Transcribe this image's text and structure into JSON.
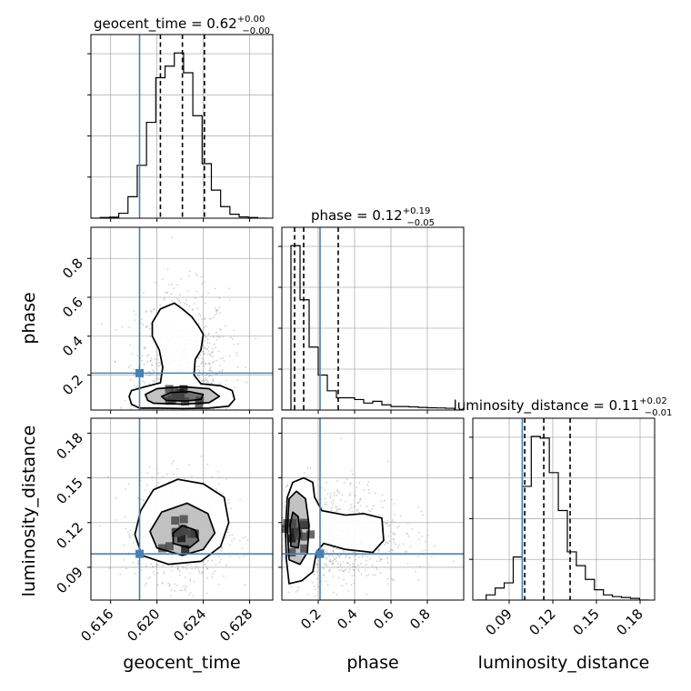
{
  "chart_data": {
    "type": "corner",
    "parameters": [
      "geocent_time",
      "phase",
      "luminosity_distance"
    ],
    "truth": {
      "geocent_time": 0.6185,
      "phase": 0.21,
      "luminosity_distance": 0.099
    },
    "colors": {
      "truth": "#4682b4",
      "hist": "#000000",
      "grid": "#b0b0b0",
      "points": "#9a9a9a"
    },
    "grid": true,
    "marginals": [
      {
        "param": "geocent_time",
        "title": {
          "main": "geocent_time = 0.62",
          "sup": "+0.00",
          "sub": "−0.00"
        },
        "range": [
          0.6143,
          0.63
        ],
        "ticks": [
          0.616,
          0.62,
          0.624,
          0.628
        ],
        "tick_labels": [
          "0.616",
          "0.620",
          "0.624",
          "0.628"
        ],
        "quantiles": [
          0.6203,
          0.6222,
          0.6241
        ],
        "bin_edges": [
          0.6143,
          0.6151,
          0.6159,
          0.6167,
          0.6175,
          0.6183,
          0.6191,
          0.6199,
          0.6207,
          0.6215,
          0.6223,
          0.6231,
          0.6239,
          0.6247,
          0.6255,
          0.6263,
          0.6271,
          0.6279,
          0.6287,
          0.6295
        ],
        "counts": [
          0.0,
          0.004,
          0.006,
          0.03,
          0.13,
          0.32,
          0.58,
          0.85,
          0.92,
          1.0,
          0.88,
          0.62,
          0.33,
          0.17,
          0.07,
          0.024,
          0.008,
          0.004,
          0.0
        ]
      },
      {
        "param": "phase",
        "title": {
          "main": "phase = 0.12",
          "sup": "+0.19",
          "sub": "−0.05"
        },
        "range": [
          0.0,
          1.0
        ],
        "ticks": [
          0.2,
          0.4,
          0.6,
          0.8
        ],
        "tick_labels": [
          "0.2",
          "0.4",
          "0.6",
          "0.8"
        ],
        "quantiles": [
          0.07,
          0.12,
          0.31
        ],
        "bin_edges": [
          0.0,
          0.05,
          0.1,
          0.15,
          0.2,
          0.25,
          0.3,
          0.35,
          0.4,
          0.45,
          0.5,
          0.55,
          0.6,
          0.65,
          0.7,
          0.75,
          0.8,
          0.85,
          0.9,
          0.95,
          1.0
        ],
        "counts": [
          0.0,
          0.94,
          0.63,
          0.36,
          0.2,
          0.11,
          0.07,
          0.07,
          0.06,
          0.04,
          0.05,
          0.03,
          0.02,
          0.02,
          0.018,
          0.015,
          0.013,
          0.012,
          0.01,
          0.0
        ]
      },
      {
        "param": "luminosity_distance",
        "title": {
          "main": "luminosity_distance = 0.11",
          "sup": "+0.02",
          "sub": "−0.01"
        },
        "range": [
          0.065,
          0.19
        ],
        "ticks": [
          0.09,
          0.12,
          0.15,
          0.18
        ],
        "tick_labels": [
          "0.09",
          "0.12",
          "0.15",
          "0.18"
        ],
        "quantiles": [
          0.1007,
          0.1138,
          0.1319
        ],
        "bin_edges": [
          0.068,
          0.0742,
          0.0804,
          0.0866,
          0.0928,
          0.099,
          0.1052,
          0.1114,
          0.1176,
          0.1238,
          0.13,
          0.1362,
          0.1424,
          0.1486,
          0.1548,
          0.161,
          0.1672,
          0.1734,
          0.1796,
          0.1858
        ],
        "counts": [
          0.0,
          0.03,
          0.07,
          0.1,
          0.25,
          0.66,
          0.95,
          0.94,
          0.74,
          0.52,
          0.28,
          0.2,
          0.12,
          0.06,
          0.03,
          0.02,
          0.015,
          0.01,
          0.0
        ]
      }
    ],
    "pairs": [
      {
        "x": "geocent_time",
        "y": "phase",
        "y_range": [
          0.02,
          0.96
        ],
        "y_ticks": [
          0.2,
          0.4,
          0.6,
          0.8
        ],
        "y_tick_labels": [
          "0.2",
          "0.4",
          "0.6",
          "0.8"
        ],
        "contours": [
          [
            [
              0.6185,
              0.03
            ],
            [
              0.62,
              0.03
            ],
            [
              0.6222,
              0.028
            ],
            [
              0.6245,
              0.03
            ],
            [
              0.6262,
              0.04
            ],
            [
              0.6267,
              0.075
            ],
            [
              0.6265,
              0.12
            ],
            [
              0.6255,
              0.145
            ],
            [
              0.6238,
              0.155
            ],
            [
              0.6232,
              0.2
            ],
            [
              0.6233,
              0.28
            ],
            [
              0.6238,
              0.33
            ],
            [
              0.624,
              0.41
            ],
            [
              0.6236,
              0.45
            ],
            [
              0.623,
              0.5
            ],
            [
              0.6222,
              0.54
            ],
            [
              0.6215,
              0.57
            ],
            [
              0.6203,
              0.54
            ],
            [
              0.6196,
              0.47
            ],
            [
              0.6196,
              0.4
            ],
            [
              0.6202,
              0.33
            ],
            [
              0.6205,
              0.24
            ],
            [
              0.6203,
              0.16
            ],
            [
              0.619,
              0.14
            ],
            [
              0.6178,
              0.12
            ],
            [
              0.6176,
              0.09
            ],
            [
              0.6178,
              0.05
            ],
            [
              0.6185,
              0.03
            ]
          ],
          [
            [
              0.6197,
              0.055
            ],
            [
              0.6222,
              0.05
            ],
            [
              0.6245,
              0.058
            ],
            [
              0.6254,
              0.09
            ],
            [
              0.6245,
              0.13
            ],
            [
              0.6222,
              0.14
            ],
            [
              0.62,
              0.13
            ],
            [
              0.619,
              0.1
            ],
            [
              0.6192,
              0.07
            ],
            [
              0.6197,
              0.055
            ]
          ],
          [
            [
              0.6208,
              0.07
            ],
            [
              0.6224,
              0.066
            ],
            [
              0.6238,
              0.075
            ],
            [
              0.624,
              0.1
            ],
            [
              0.6228,
              0.115
            ],
            [
              0.6212,
              0.11
            ],
            [
              0.6204,
              0.09
            ],
            [
              0.6208,
              0.07
            ]
          ]
        ],
        "core": {
          "center": [
            0.6222,
            0.095
          ],
          "spread": [
            0.0011,
            0.03
          ]
        },
        "scatter": {
          "center": [
            0.6222,
            0.22
          ],
          "spread": [
            0.002,
            0.21
          ]
        }
      },
      {
        "x": "geocent_time",
        "y": "luminosity_distance",
        "y_range": [
          0.068,
          0.19
        ],
        "y_ticks": [
          0.09,
          0.12,
          0.15,
          0.18
        ],
        "y_tick_labels": [
          "0.09",
          "0.12",
          "0.15",
          "0.18"
        ],
        "contours": [
          [
            [
              0.6187,
              0.098
            ],
            [
              0.621,
              0.092
            ],
            [
              0.6238,
              0.094
            ],
            [
              0.6255,
              0.104
            ],
            [
              0.6262,
              0.12
            ],
            [
              0.6258,
              0.137
            ],
            [
              0.624,
              0.146
            ],
            [
              0.6218,
              0.149
            ],
            [
              0.6197,
              0.142
            ],
            [
              0.6186,
              0.128
            ],
            [
              0.6181,
              0.112
            ],
            [
              0.6187,
              0.098
            ]
          ],
          [
            [
              0.62,
              0.103
            ],
            [
              0.6222,
              0.098
            ],
            [
              0.624,
              0.102
            ],
            [
              0.625,
              0.113
            ],
            [
              0.6244,
              0.126
            ],
            [
              0.6226,
              0.133
            ],
            [
              0.6204,
              0.127
            ],
            [
              0.6194,
              0.114
            ],
            [
              0.62,
              0.103
            ]
          ],
          [
            [
              0.6214,
              0.106
            ],
            [
              0.6228,
              0.103
            ],
            [
              0.6236,
              0.108
            ],
            [
              0.6233,
              0.115
            ],
            [
              0.6222,
              0.118
            ],
            [
              0.6214,
              0.113
            ],
            [
              0.6214,
              0.106
            ]
          ]
        ],
        "core": {
          "center": [
            0.6222,
            0.112
          ],
          "spread": [
            0.001,
            0.006
          ]
        },
        "scatter": {
          "center": [
            0.6222,
            0.115
          ],
          "spread": [
            0.0019,
            0.017
          ]
        }
      },
      {
        "x": "phase",
        "y": "luminosity_distance",
        "y_range": [
          0.068,
          0.19
        ],
        "y_ticks": [
          0.09,
          0.12,
          0.15,
          0.18
        ],
        "y_tick_labels": [
          "0.09",
          "0.12",
          "0.15",
          "0.18"
        ],
        "contours": [
          [
            [
              0.04,
              0.079
            ],
            [
              0.11,
              0.081
            ],
            [
              0.17,
              0.087
            ],
            [
              0.19,
              0.1
            ],
            [
              0.23,
              0.106
            ],
            [
              0.35,
              0.102
            ],
            [
              0.5,
              0.1
            ],
            [
              0.56,
              0.108
            ],
            [
              0.55,
              0.123
            ],
            [
              0.45,
              0.126
            ],
            [
              0.35,
              0.125
            ],
            [
              0.22,
              0.128
            ],
            [
              0.18,
              0.137
            ],
            [
              0.17,
              0.147
            ],
            [
              0.12,
              0.15
            ],
            [
              0.06,
              0.147
            ],
            [
              0.03,
              0.137
            ],
            [
              0.02,
              0.115
            ],
            [
              0.025,
              0.095
            ],
            [
              0.04,
              0.079
            ]
          ],
          [
            [
              0.04,
              0.095
            ],
            [
              0.1,
              0.092
            ],
            [
              0.14,
              0.1
            ],
            [
              0.15,
              0.118
            ],
            [
              0.13,
              0.136
            ],
            [
              0.08,
              0.141
            ],
            [
              0.04,
              0.136
            ],
            [
              0.03,
              0.115
            ],
            [
              0.04,
              0.095
            ]
          ],
          [
            [
              0.05,
              0.104
            ],
            [
              0.09,
              0.103
            ],
            [
              0.1,
              0.112
            ],
            [
              0.09,
              0.124
            ],
            [
              0.06,
              0.127
            ],
            [
              0.045,
              0.118
            ],
            [
              0.05,
              0.104
            ]
          ]
        ],
        "core": {
          "center": [
            0.075,
            0.11
          ],
          "spread": [
            0.035,
            0.009
          ]
        },
        "scatter": {
          "center": [
            0.25,
            0.112
          ],
          "spread": [
            0.21,
            0.018
          ]
        }
      }
    ]
  }
}
